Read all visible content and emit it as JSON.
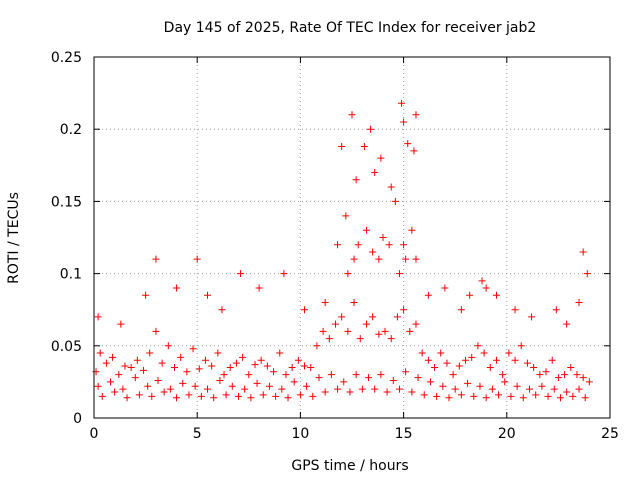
{
  "chart_data": {
    "type": "scatter",
    "title": "Day 145 of 2025, Rate Of TEC Index for receiver jab2",
    "xlabel": "GPS time / hours",
    "ylabel": "ROTI / TECUs",
    "xlim": [
      0,
      25
    ],
    "ylim": [
      0,
      0.25
    ],
    "xticks": [
      0,
      5,
      10,
      15,
      20,
      25
    ],
    "xtick_labels": [
      "0",
      "5",
      "10",
      "15",
      "20",
      "25"
    ],
    "yticks": [
      0,
      0.05,
      0.1,
      0.15,
      0.2,
      0.25
    ],
    "ytick_labels": [
      "0",
      "0.05",
      "0.1",
      "0.15",
      "0.2",
      "0.25"
    ],
    "grid": true,
    "marker": "plus",
    "series_color": "#ff0000",
    "series": [
      {
        "name": "ROTI",
        "x": [
          0.1,
          0.3,
          0.6,
          0.9,
          1.2,
          1.5,
          1.8,
          2.1,
          2.4,
          2.7,
          3.0,
          3.3,
          3.6,
          3.9,
          4.2,
          4.5,
          4.8,
          5.1,
          5.4,
          5.7,
          6.0,
          6.3,
          6.6,
          6.9,
          7.2,
          7.5,
          7.8,
          8.1,
          8.4,
          8.7,
          9.0,
          9.3,
          9.6,
          9.9,
          10.2,
          10.5,
          10.8,
          11.1,
          11.4,
          11.7,
          12.0,
          12.3,
          12.6,
          12.9,
          13.2,
          13.5,
          13.8,
          14.1,
          14.4,
          14.7,
          15.0,
          15.3,
          15.6,
          15.9,
          16.2,
          16.5,
          16.8,
          17.1,
          17.4,
          17.7,
          18.0,
          18.3,
          18.6,
          18.9,
          19.2,
          19.5,
          19.8,
          20.1,
          20.4,
          20.7,
          21.0,
          21.3,
          21.6,
          21.9,
          22.2,
          22.5,
          22.8,
          23.1,
          23.4,
          23.7,
          24.0,
          0.2,
          0.8,
          1.4,
          2.0,
          2.6,
          3.1,
          3.7,
          4.3,
          4.9,
          5.5,
          6.1,
          6.7,
          7.3,
          7.9,
          8.5,
          9.1,
          9.7,
          10.3,
          10.9,
          11.5,
          12.1,
          12.7,
          13.3,
          13.9,
          14.5,
          15.1,
          15.7,
          16.3,
          16.9,
          17.5,
          18.1,
          18.7,
          19.3,
          19.9,
          20.5,
          21.1,
          21.7,
          22.3,
          22.9,
          23.5,
          0.4,
          1.0,
          1.6,
          2.2,
          2.8,
          3.4,
          4.0,
          4.6,
          5.2,
          5.8,
          6.4,
          7.0,
          7.6,
          8.2,
          8.8,
          9.4,
          10.0,
          10.6,
          11.2,
          11.8,
          12.4,
          13.0,
          13.6,
          14.2,
          14.8,
          15.4,
          16.0,
          16.6,
          17.2,
          17.8,
          18.4,
          19.0,
          19.6,
          20.2,
          20.8,
          21.4,
          22.0,
          22.6,
          23.2,
          23.8,
          0.2,
          1.3,
          2.5,
          3.0,
          4.0,
          5.0,
          5.5,
          6.2,
          7.1,
          8.0,
          9.2,
          10.2,
          11.2,
          11.8,
          12.3,
          12.6,
          12.8,
          13.2,
          13.5,
          13.8,
          14.0,
          14.3,
          14.8,
          15.0,
          15.1,
          15.4,
          15.6,
          16.2,
          17.0,
          17.8,
          18.2,
          18.8,
          19.0,
          19.5,
          20.4,
          21.2,
          22.4,
          22.9,
          23.5,
          23.7,
          23.9,
          12.0,
          12.5,
          12.7,
          13.1,
          13.4,
          13.9,
          14.4,
          14.9,
          15.0,
          15.2,
          15.5,
          15.6,
          12.2,
          13.6,
          14.6
        ],
        "y": [
          0.032,
          0.045,
          0.038,
          0.042,
          0.03,
          0.036,
          0.035,
          0.04,
          0.033,
          0.045,
          0.06,
          0.038,
          0.05,
          0.035,
          0.042,
          0.032,
          0.048,
          0.034,
          0.04,
          0.036,
          0.045,
          0.03,
          0.035,
          0.038,
          0.042,
          0.03,
          0.037,
          0.04,
          0.036,
          0.032,
          0.045,
          0.03,
          0.035,
          0.04,
          0.036,
          0.035,
          0.05,
          0.06,
          0.055,
          0.065,
          0.07,
          0.06,
          0.08,
          0.055,
          0.065,
          0.07,
          0.058,
          0.06,
          0.055,
          0.07,
          0.075,
          0.06,
          0.065,
          0.045,
          0.04,
          0.035,
          0.045,
          0.038,
          0.03,
          0.036,
          0.04,
          0.042,
          0.05,
          0.045,
          0.035,
          0.04,
          0.03,
          0.045,
          0.04,
          0.05,
          0.038,
          0.035,
          0.03,
          0.032,
          0.04,
          0.028,
          0.03,
          0.035,
          0.03,
          0.028,
          0.025,
          0.022,
          0.025,
          0.02,
          0.028,
          0.022,
          0.026,
          0.02,
          0.024,
          0.022,
          0.02,
          0.026,
          0.022,
          0.02,
          0.024,
          0.022,
          0.02,
          0.025,
          0.022,
          0.028,
          0.03,
          0.025,
          0.03,
          0.028,
          0.03,
          0.026,
          0.032,
          0.028,
          0.025,
          0.022,
          0.02,
          0.024,
          0.022,
          0.02,
          0.025,
          0.022,
          0.02,
          0.022,
          0.02,
          0.018,
          0.02,
          0.015,
          0.018,
          0.014,
          0.016,
          0.015,
          0.018,
          0.014,
          0.016,
          0.015,
          0.014,
          0.016,
          0.015,
          0.014,
          0.016,
          0.015,
          0.014,
          0.016,
          0.015,
          0.018,
          0.02,
          0.018,
          0.02,
          0.02,
          0.018,
          0.02,
          0.018,
          0.016,
          0.015,
          0.014,
          0.016,
          0.015,
          0.014,
          0.016,
          0.015,
          0.014,
          0.016,
          0.015,
          0.014,
          0.015,
          0.014,
          0.07,
          0.065,
          0.085,
          0.11,
          0.09,
          0.11,
          0.085,
          0.075,
          0.1,
          0.09,
          0.1,
          0.075,
          0.08,
          0.12,
          0.1,
          0.11,
          0.12,
          0.13,
          0.115,
          0.11,
          0.125,
          0.12,
          0.1,
          0.12,
          0.11,
          0.13,
          0.11,
          0.085,
          0.09,
          0.075,
          0.085,
          0.095,
          0.09,
          0.085,
          0.075,
          0.07,
          0.075,
          0.065,
          0.08,
          0.115,
          0.1,
          0.188,
          0.21,
          0.165,
          0.188,
          0.2,
          0.18,
          0.16,
          0.218,
          0.205,
          0.19,
          0.185,
          0.21,
          0.14,
          0.17,
          0.15
        ]
      }
    ]
  }
}
